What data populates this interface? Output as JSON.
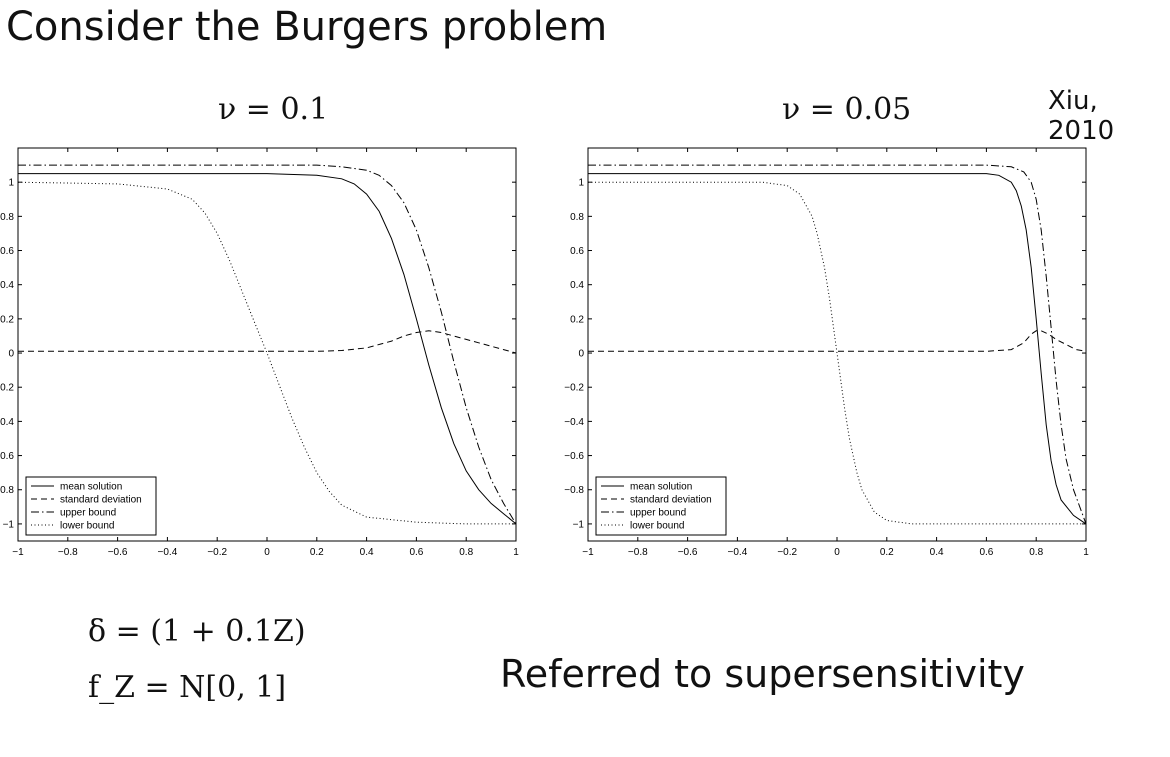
{
  "slide": {
    "title": "Consider the Burgers problem",
    "citation": "Xiu, 2010",
    "note": "Referred to supersensitivity",
    "eq1": "δ = (1 + 0.1Z)",
    "eq2": "f_Z = N[0, 1]"
  },
  "chart_data": [
    {
      "type": "line",
      "title": "ν = 0.1",
      "xlim": [
        -1,
        1
      ],
      "ylim": [
        -1.1,
        1.2
      ],
      "xticks": [
        "−1",
        "−0.8",
        "−0.6",
        "−0.4",
        "−0.2",
        "0",
        "0.2",
        "0.4",
        "0.6",
        "0.8",
        "1"
      ],
      "yticks": [
        "−1",
        "−0.8",
        "−0.6",
        "−0.4",
        "−0.2",
        "0",
        "0.2",
        "0.4",
        "0.6",
        "0.8",
        "1"
      ],
      "legend_position": "bottom-left",
      "series": [
        {
          "name": "mean solution",
          "style": "solid",
          "x": [
            -1,
            -0.6,
            -0.2,
            0,
            0.2,
            0.3,
            0.35,
            0.4,
            0.45,
            0.5,
            0.55,
            0.6,
            0.65,
            0.7,
            0.75,
            0.8,
            0.85,
            0.9,
            0.95,
            1
          ],
          "y": [
            1.05,
            1.05,
            1.05,
            1.05,
            1.04,
            1.02,
            0.99,
            0.93,
            0.83,
            0.67,
            0.46,
            0.2,
            -0.07,
            -0.32,
            -0.53,
            -0.69,
            -0.8,
            -0.88,
            -0.94,
            -1.0
          ]
        },
        {
          "name": "standard deviation",
          "style": "dashed",
          "x": [
            -1,
            -0.6,
            -0.2,
            0,
            0.2,
            0.3,
            0.4,
            0.5,
            0.55,
            0.6,
            0.65,
            0.7,
            0.75,
            0.8,
            0.85,
            0.9,
            0.95,
            1
          ],
          "y": [
            0.01,
            0.01,
            0.01,
            0.01,
            0.01,
            0.015,
            0.03,
            0.07,
            0.1,
            0.12,
            0.13,
            0.12,
            0.1,
            0.08,
            0.06,
            0.04,
            0.02,
            0.0
          ]
        },
        {
          "name": "upper bound",
          "style": "dashdot",
          "x": [
            -1,
            -0.6,
            -0.2,
            0,
            0.2,
            0.3,
            0.4,
            0.45,
            0.5,
            0.55,
            0.6,
            0.65,
            0.7,
            0.75,
            0.8,
            0.85,
            0.9,
            0.95,
            1
          ],
          "y": [
            1.1,
            1.1,
            1.1,
            1.1,
            1.1,
            1.09,
            1.07,
            1.04,
            0.98,
            0.88,
            0.72,
            0.5,
            0.24,
            -0.05,
            -0.32,
            -0.55,
            -0.74,
            -0.88,
            -1.0
          ]
        },
        {
          "name": "lower bound",
          "style": "dotted",
          "x": [
            -1,
            -0.6,
            -0.4,
            -0.3,
            -0.25,
            -0.2,
            -0.15,
            -0.1,
            -0.05,
            0,
            0.05,
            0.1,
            0.15,
            0.2,
            0.25,
            0.3,
            0.4,
            0.6,
            0.8,
            1
          ],
          "y": [
            1.0,
            0.99,
            0.96,
            0.9,
            0.82,
            0.7,
            0.54,
            0.36,
            0.18,
            0.0,
            -0.19,
            -0.38,
            -0.55,
            -0.7,
            -0.81,
            -0.89,
            -0.96,
            -0.99,
            -1.0,
            -1.0
          ]
        }
      ]
    },
    {
      "type": "line",
      "title": "ν = 0.05",
      "xlim": [
        -1,
        1
      ],
      "ylim": [
        -1.1,
        1.2
      ],
      "xticks": [
        "−1",
        "−0.8",
        "−0.6",
        "−0.4",
        "−0.2",
        "0",
        "0.2",
        "0.4",
        "0.6",
        "0.8",
        "1"
      ],
      "yticks": [
        "−1",
        "−0.8",
        "−0.6",
        "−0.4",
        "−0.2",
        "0",
        "0.2",
        "0.4",
        "0.6",
        "0.8",
        "1"
      ],
      "legend_position": "bottom-left",
      "series": [
        {
          "name": "mean solution",
          "style": "solid",
          "x": [
            -1,
            -0.6,
            -0.2,
            0,
            0.2,
            0.4,
            0.5,
            0.6,
            0.65,
            0.7,
            0.72,
            0.74,
            0.76,
            0.78,
            0.8,
            0.82,
            0.84,
            0.86,
            0.88,
            0.9,
            0.95,
            1
          ],
          "y": [
            1.05,
            1.05,
            1.05,
            1.05,
            1.05,
            1.05,
            1.05,
            1.05,
            1.04,
            1.0,
            0.95,
            0.86,
            0.72,
            0.5,
            0.2,
            -0.12,
            -0.42,
            -0.63,
            -0.77,
            -0.86,
            -0.95,
            -1.0
          ]
        },
        {
          "name": "standard deviation",
          "style": "dashed",
          "x": [
            -1,
            -0.6,
            -0.2,
            0,
            0.2,
            0.4,
            0.6,
            0.7,
            0.75,
            0.78,
            0.8,
            0.82,
            0.85,
            0.88,
            0.92,
            0.96,
            1
          ],
          "y": [
            0.01,
            0.01,
            0.01,
            0.01,
            0.01,
            0.01,
            0.01,
            0.02,
            0.06,
            0.11,
            0.13,
            0.13,
            0.11,
            0.08,
            0.05,
            0.02,
            0.01
          ]
        },
        {
          "name": "upper bound",
          "style": "dashdot",
          "x": [
            -1,
            -0.6,
            -0.2,
            0,
            0.2,
            0.4,
            0.6,
            0.7,
            0.75,
            0.78,
            0.8,
            0.82,
            0.84,
            0.86,
            0.88,
            0.9,
            0.92,
            0.95,
            1
          ],
          "y": [
            1.1,
            1.1,
            1.1,
            1.1,
            1.1,
            1.1,
            1.1,
            1.09,
            1.06,
            1.0,
            0.9,
            0.72,
            0.45,
            0.15,
            -0.16,
            -0.42,
            -0.62,
            -0.8,
            -1.0
          ]
        },
        {
          "name": "lower bound",
          "style": "dotted",
          "x": [
            -1,
            -0.6,
            -0.3,
            -0.2,
            -0.15,
            -0.1,
            -0.08,
            -0.05,
            -0.03,
            0,
            0.03,
            0.05,
            0.08,
            0.1,
            0.15,
            0.2,
            0.3,
            0.5,
            0.8,
            1
          ],
          "y": [
            1.0,
            1.0,
            1.0,
            0.98,
            0.93,
            0.8,
            0.7,
            0.5,
            0.32,
            0.0,
            -0.32,
            -0.5,
            -0.7,
            -0.8,
            -0.93,
            -0.98,
            -1.0,
            -1.0,
            -1.0,
            -1.0
          ]
        }
      ]
    }
  ]
}
